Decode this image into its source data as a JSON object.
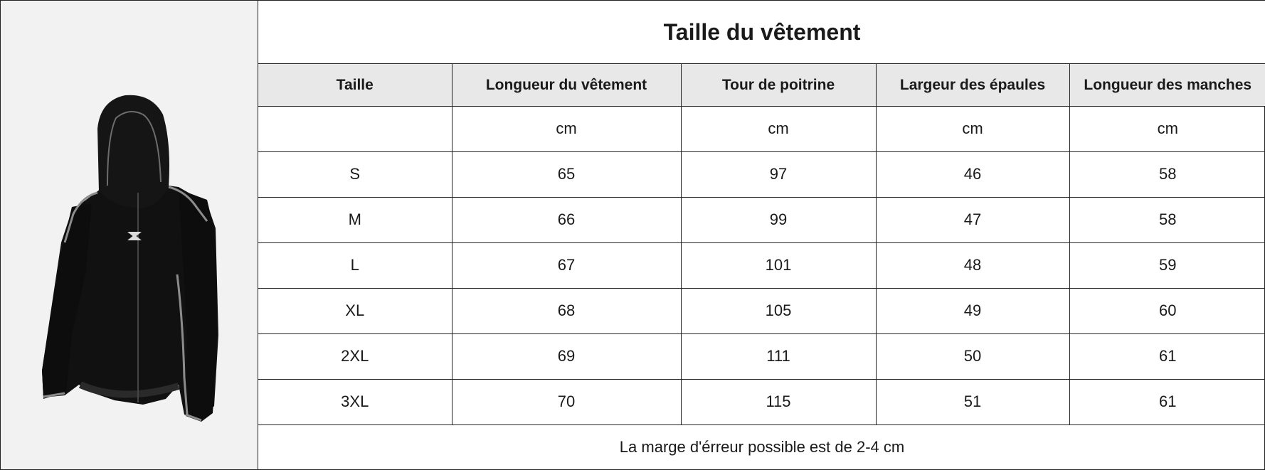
{
  "title": "Taille du vêtement",
  "headers": [
    "Taille",
    "Longueur du vêtement",
    "Tour de poitrine",
    "Largeur des épaules",
    "Longueur des manches"
  ],
  "units": [
    "",
    "cm",
    "cm",
    "cm",
    "cm"
  ],
  "rows": [
    [
      "S",
      "65",
      "97",
      "46",
      "58"
    ],
    [
      "M",
      "66",
      "99",
      "47",
      "58"
    ],
    [
      "L",
      "67",
      "101",
      "48",
      "59"
    ],
    [
      "XL",
      "68",
      "105",
      "49",
      "60"
    ],
    [
      "2XL",
      "69",
      "111",
      "50",
      "61"
    ],
    [
      "3XL",
      "70",
      "115",
      "51",
      "61"
    ]
  ],
  "note": "La marge d'érreur possible est de 2-4 cm",
  "product_image": {
    "subject": "black-zip-hoodie",
    "color": "#111111",
    "piping_color": "#9a9a9a"
  }
}
